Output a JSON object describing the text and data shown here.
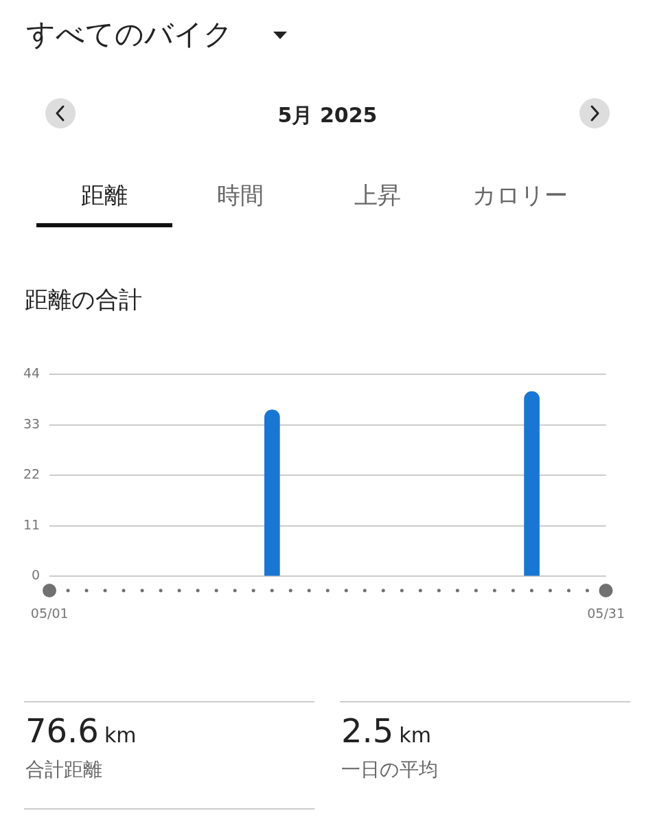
{
  "chart_data": {
    "type": "bar",
    "title": "すべてのバイク",
    "subtitle": "5月 2025",
    "annotations": [
      "距離",
      "時間",
      "上昇",
      "カロリー",
      "距離の合計",
      "76.6",
      "km",
      "合計距離",
      "2.5",
      "km",
      "一日の平均"
    ],
    "categories": [
      "05/01",
      null,
      null,
      null,
      null,
      null,
      null,
      null,
      null,
      null,
      null,
      null,
      null,
      null,
      null,
      null,
      null,
      null,
      null,
      null,
      null,
      null,
      null,
      null,
      null,
      null,
      null,
      null,
      null,
      null,
      "05/31"
    ],
    "values": [
      null,
      null,
      null,
      null,
      null,
      null,
      null,
      null,
      null,
      null,
      null,
      null,
      36.3,
      null,
      null,
      null,
      null,
      null,
      null,
      null,
      null,
      null,
      null,
      null,
      null,
      null,
      40.3,
      null,
      null,
      null,
      null
    ],
    "color": "#1976d2",
    "ylim": [
      0,
      44
    ],
    "yticks": [
      0,
      11,
      22,
      33,
      44
    ],
    "grid": "y"
  }
}
